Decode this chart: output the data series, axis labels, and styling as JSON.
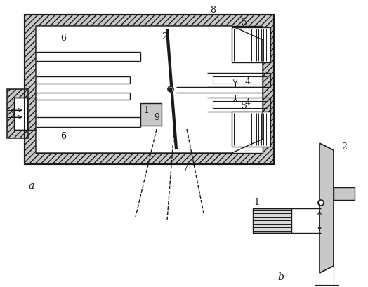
{
  "bg": "#ffffff",
  "lc": "#1a1a1a",
  "hatch_fc": "#c8c8c8",
  "gray_fc": "#aaaaaa",
  "gray2_fc": "#c0c0c0"
}
